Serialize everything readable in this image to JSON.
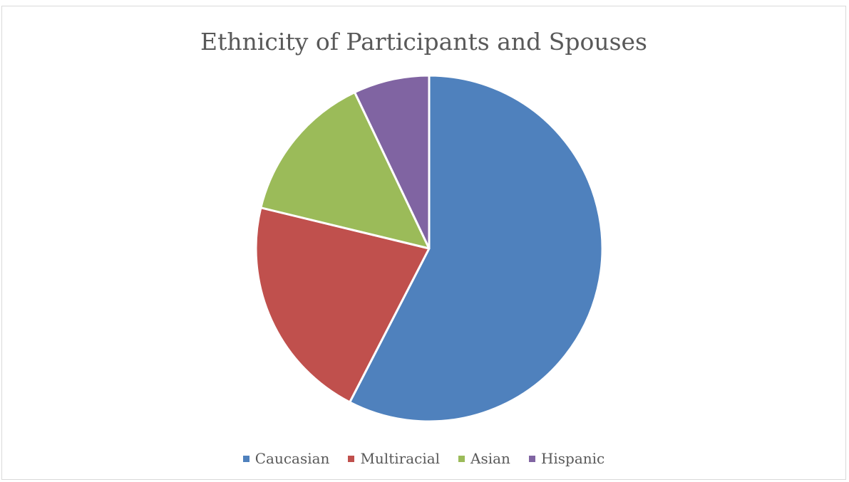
{
  "chart_data": {
    "type": "pie",
    "title": "Ethnicity of Participants and Spouses",
    "categories": [
      "Caucasian",
      "Multiracial",
      "Asian",
      "Hispanic"
    ],
    "values": [
      57,
      21,
      14,
      7
    ],
    "colors": [
      "#4F81BD",
      "#C0504D",
      "#9BBB59",
      "#8064A2"
    ],
    "legend_position": "bottom"
  }
}
